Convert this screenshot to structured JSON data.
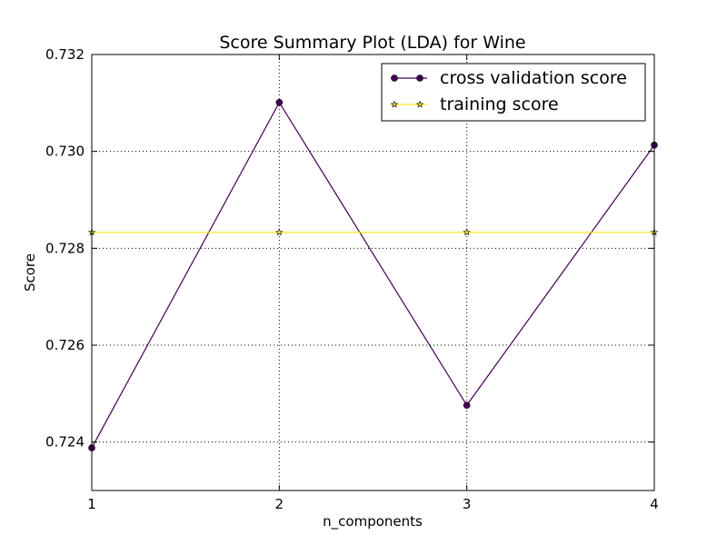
{
  "chart_data": {
    "type": "line",
    "title": "Score Summary Plot (LDA) for Wine",
    "xlabel": "n_components",
    "ylabel": "Score",
    "x": [
      1,
      2,
      3,
      4
    ],
    "xlim": [
      1,
      4
    ],
    "ylim": [
      0.723,
      0.732
    ],
    "xticks": [
      "1",
      "2",
      "3",
      "4"
    ],
    "yticks": [
      {
        "value": 0.724,
        "label": "0.724"
      },
      {
        "value": 0.726,
        "label": "0.726"
      },
      {
        "value": 0.728,
        "label": "0.728"
      },
      {
        "value": 0.73,
        "label": "0.730"
      },
      {
        "value": 0.732,
        "label": "0.732"
      }
    ],
    "grid": true,
    "legend_position": "top-right",
    "series": [
      {
        "name": "cross validation score",
        "values": [
          0.72388,
          0.73101,
          0.72476,
          0.73013
        ],
        "color": "#440154",
        "marker": "circle"
      },
      {
        "name": "training score",
        "values": [
          0.72833,
          0.72833,
          0.72833,
          0.72833
        ],
        "color": "#fde725",
        "marker": "star"
      }
    ]
  }
}
